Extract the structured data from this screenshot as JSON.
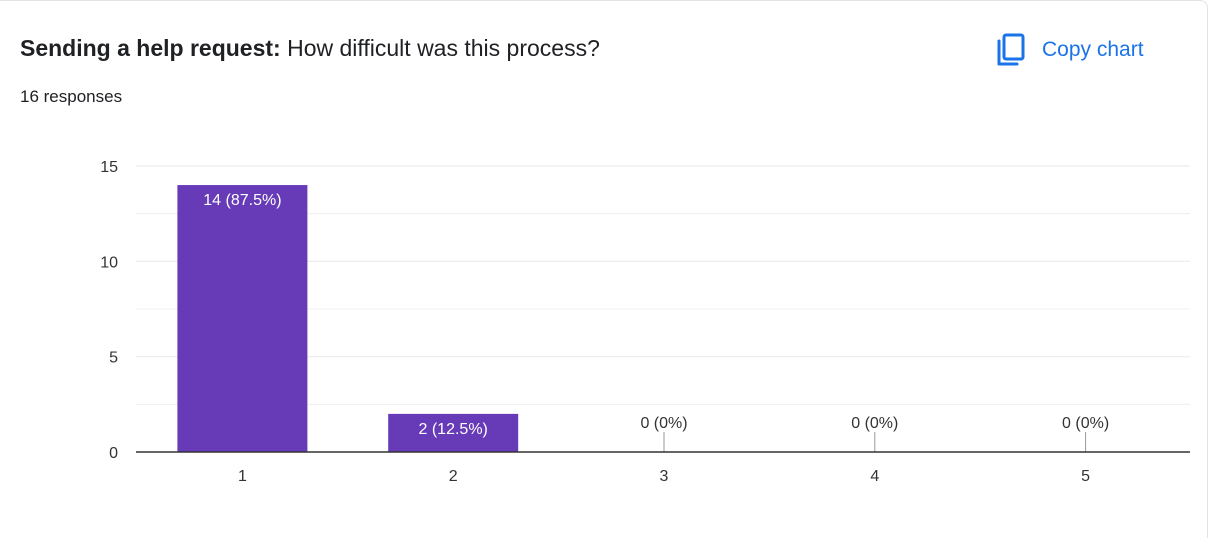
{
  "header": {
    "title_bold": "Sending a help request:",
    "title_rest": " How difficult was this process?",
    "responses": "16 responses",
    "copy_label": "Copy chart"
  },
  "colors": {
    "bar": "#673ab7",
    "accent": "#1a73e8",
    "grid": "#ececec",
    "axis": "#333333"
  },
  "chart_data": {
    "type": "bar",
    "categories": [
      "1",
      "2",
      "3",
      "4",
      "5"
    ],
    "values": [
      14,
      2,
      0,
      0,
      0
    ],
    "data_labels": [
      "14 (87.5%)",
      "2 (12.5%)",
      "0 (0%)",
      "0 (0%)",
      "0 (0%)"
    ],
    "yticks": [
      "0",
      "5",
      "10",
      "15"
    ],
    "ylim": [
      0,
      15
    ],
    "grid": true,
    "legend": "none"
  }
}
